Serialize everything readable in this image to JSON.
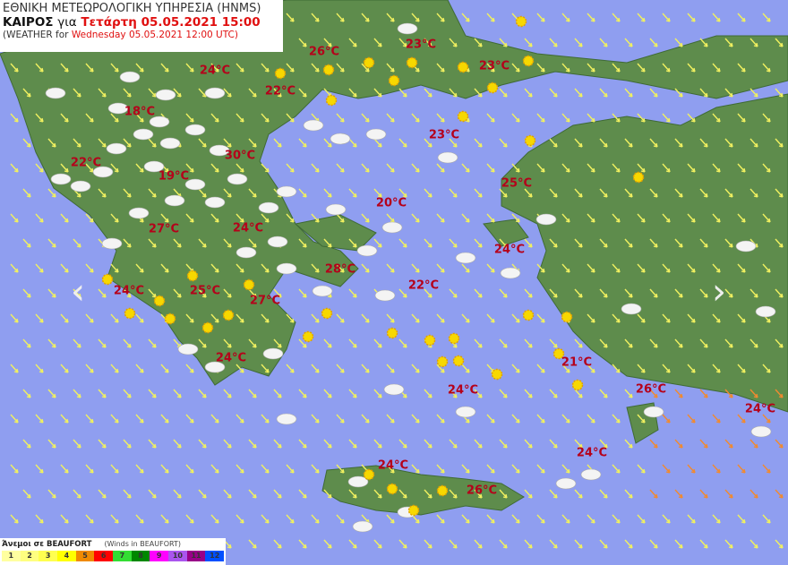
{
  "header": {
    "agency": "ΕΘΝΙΚΗ ΜΕΤΕΩΡΟΛΟΓΙΚΗ ΥΠΗΡΕΣΙΑ (HNMS)",
    "weather_label": "ΚΑΙΡΟΣ",
    "for_label": "για",
    "local_datetime": "Τετάρτη 05.05.2021 15:00",
    "en_prefix": "(WEATHER for",
    "en_datetime": "Wednesday 05.05.2021 12:00 UTC)"
  },
  "temperatures": [
    "26°C",
    "23°C",
    "23°C",
    "24°C",
    "22°C",
    "18°C",
    "23°C",
    "30°C",
    "22°C",
    "19°C",
    "25°C",
    "20°C",
    "27°C",
    "24°C",
    "24°C",
    "28°C",
    "22°C",
    "24°C",
    "25°C",
    "27°C",
    "24°C",
    "21°C",
    "24°C",
    "26°C",
    "24°C",
    "24°C",
    "24°C",
    "26°C"
  ],
  "nav": {
    "prev_icon": "chevron-left-icon",
    "next_icon": "chevron-right-icon"
  },
  "legend": {
    "title": "Άνεμοι σε BEAUFORT",
    "subtitle": "(Winds in BEAUFORT)",
    "scale": [
      {
        "v": "1",
        "c": "#ffffa0"
      },
      {
        "v": "2",
        "c": "#ffff80"
      },
      {
        "v": "3",
        "c": "#ffff50"
      },
      {
        "v": "4",
        "c": "#ffff00"
      },
      {
        "v": "5",
        "c": "#f08a00"
      },
      {
        "v": "6",
        "c": "#ff0000"
      },
      {
        "v": "7",
        "c": "#33dd33"
      },
      {
        "v": "8",
        "c": "#008800"
      },
      {
        "v": "9",
        "c": "#ff00ff"
      },
      {
        "v": "10",
        "c": "#aa55ee"
      },
      {
        "v": "11",
        "c": "#990088"
      },
      {
        "v": "12",
        "c": "#0050ff"
      }
    ]
  },
  "colors": {
    "sea": "#8f9ef0",
    "land": "#5a8a4a",
    "temp_text": "#b5001a",
    "arrow": "#f0f060"
  }
}
